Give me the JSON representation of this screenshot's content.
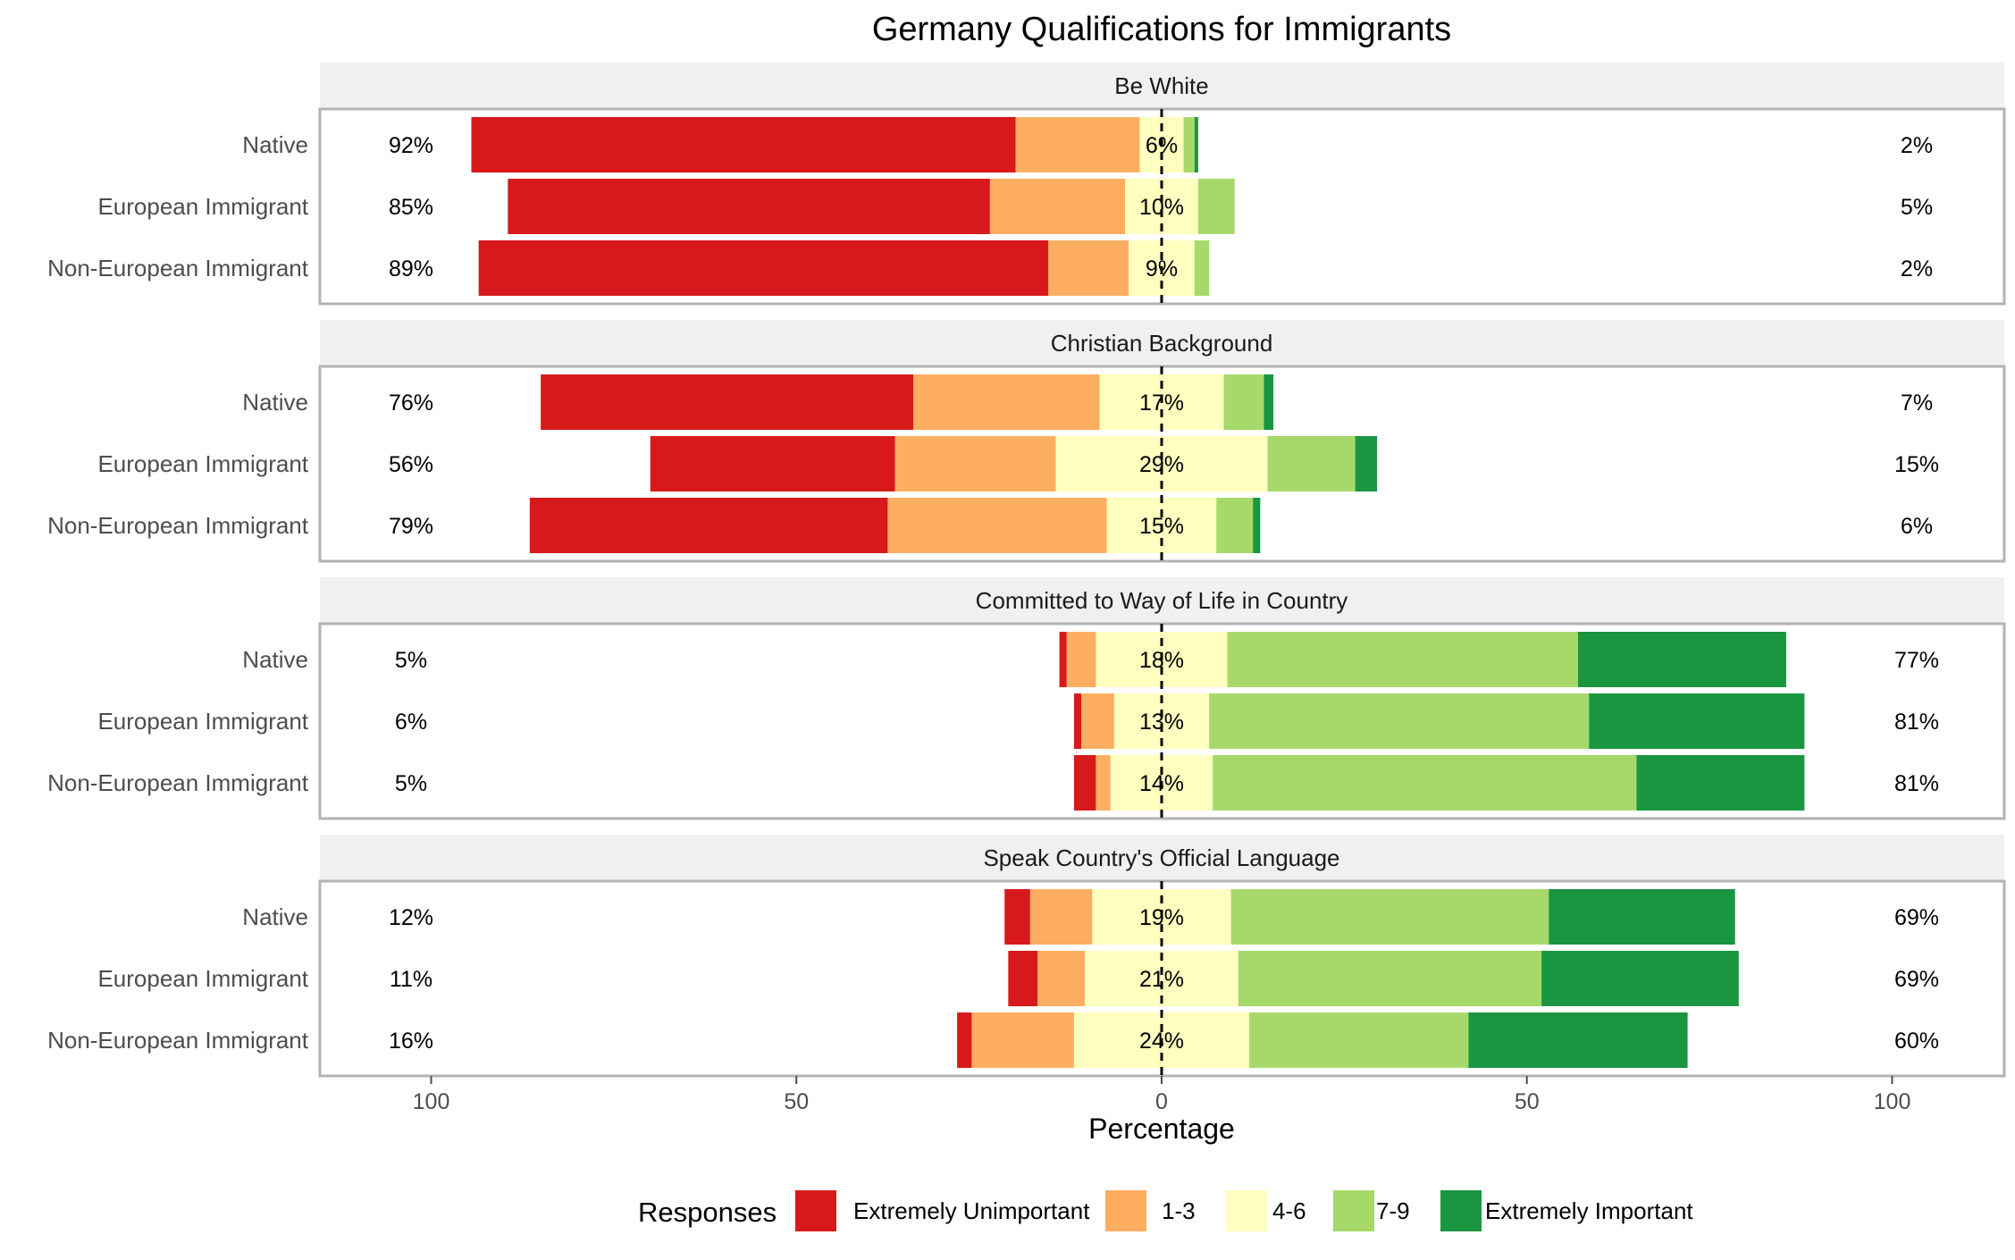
{
  "chart_data": {
    "type": "bar",
    "title": "Germany Qualifications for Immigrants",
    "xlabel": "Percentage",
    "ylabel": "",
    "xlim": [
      -100,
      100
    ],
    "x_ticks": [
      {
        "value": -100,
        "label": "100"
      },
      {
        "value": -50,
        "label": "50"
      },
      {
        "value": 0,
        "label": "0"
      },
      {
        "value": 50,
        "label": "50"
      },
      {
        "value": 100,
        "label": "100"
      }
    ],
    "legend": {
      "title": "Responses",
      "position": "bottom",
      "entries": [
        {
          "label": "Extremely Unimportant",
          "color": "#d7191c"
        },
        {
          "label": "1-3",
          "color": "#fdae61"
        },
        {
          "label": "4-6",
          "color": "#ffffbf"
        },
        {
          "label": "7-9",
          "color": "#a6d96a"
        },
        {
          "label": "Extremely Important",
          "color": "#1a9641"
        }
      ]
    },
    "panels": [
      {
        "title": "Be White",
        "rows": [
          {
            "label": "Native",
            "values": [
              74.5,
              17,
              6,
              1.5,
              0.5
            ],
            "left_label": "92%",
            "center_label": "6%",
            "right_label": "2%"
          },
          {
            "label": "European Immigrant",
            "values": [
              66,
              18.5,
              10,
              5,
              0
            ],
            "left_label": "85%",
            "center_label": "10%",
            "right_label": "5%"
          },
          {
            "label": "Non-European Immigrant",
            "values": [
              78,
              11,
              9,
              2,
              0
            ],
            "left_label": "89%",
            "center_label": "9%",
            "right_label": "2%"
          }
        ]
      },
      {
        "title": "Christian Background",
        "rows": [
          {
            "label": "Native",
            "values": [
              51,
              25.5,
              17,
              5.5,
              1.3
            ],
            "left_label": "76%",
            "center_label": "17%",
            "right_label": "7%"
          },
          {
            "label": "European Immigrant",
            "values": [
              33.5,
              22,
              29,
              12,
              3
            ],
            "left_label": "56%",
            "center_label": "29%",
            "right_label": "15%"
          },
          {
            "label": "Non-European Immigrant",
            "values": [
              49,
              30,
              15,
              5,
              1
            ],
            "left_label": "79%",
            "center_label": "15%",
            "right_label": "6%"
          }
        ]
      },
      {
        "title": "Committed to Way of Life in Country",
        "rows": [
          {
            "label": "Native",
            "values": [
              1,
              4,
              18,
              48,
              28.5
            ],
            "left_label": "5%",
            "center_label": "18%",
            "right_label": "77%"
          },
          {
            "label": "European Immigrant",
            "values": [
              1,
              4.5,
              13,
              52,
              29.5
            ],
            "left_label": "6%",
            "center_label": "13%",
            "right_label": "81%"
          },
          {
            "label": "Non-European Immigrant",
            "values": [
              3,
              2,
              14,
              58,
              23
            ],
            "left_label": "5%",
            "center_label": "14%",
            "right_label": "81%"
          }
        ]
      },
      {
        "title": "Speak Country's Official Language",
        "rows": [
          {
            "label": "Native",
            "values": [
              3.5,
              8.5,
              19,
              43.5,
              25.5
            ],
            "left_label": "12%",
            "center_label": "19%",
            "right_label": "69%"
          },
          {
            "label": "European Immigrant",
            "values": [
              4,
              6.5,
              21,
              41.5,
              27
            ],
            "left_label": "11%",
            "center_label": "21%",
            "right_label": "69%"
          },
          {
            "label": "Non-European Immigrant",
            "values": [
              2,
              14,
              24,
              30,
              30
            ],
            "left_label": "16%",
            "center_label": "24%",
            "right_label": "60%"
          }
        ]
      }
    ]
  }
}
